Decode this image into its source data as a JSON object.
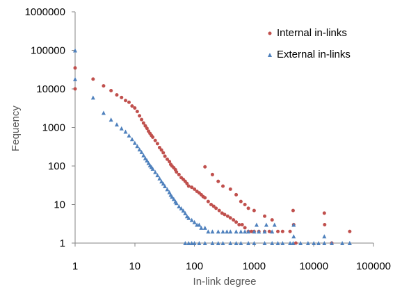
{
  "chart_data": {
    "type": "scatter",
    "title": "",
    "xlabel": "In-link degree",
    "ylabel": "Fequency",
    "xscale": "log",
    "yscale": "log",
    "xlim": [
      1,
      100000
    ],
    "ylim": [
      1,
      1000000
    ],
    "x_ticks": [
      "1",
      "10",
      "100",
      "1000",
      "10000",
      "100000"
    ],
    "y_ticks": [
      "1",
      "10",
      "100",
      "1000",
      "10000",
      "100000",
      "1000000"
    ],
    "grid": false,
    "legend_position": "top-right",
    "colors": {
      "internal": "#c0504d",
      "external": "#4f81bd",
      "axis": "#868686"
    },
    "series": [
      {
        "name": "Internal in-links",
        "marker": "circle",
        "points": [
          [
            1,
            35000
          ],
          [
            1,
            10000
          ],
          [
            2,
            18000
          ],
          [
            3,
            12000
          ],
          [
            4,
            9000
          ],
          [
            5,
            7000
          ],
          [
            6,
            6000
          ],
          [
            7,
            5000
          ],
          [
            8,
            4500
          ],
          [
            9,
            3600
          ],
          [
            10,
            3200
          ],
          [
            11,
            2600
          ],
          [
            12,
            2000
          ],
          [
            13,
            1600
          ],
          [
            14,
            1300
          ],
          [
            15,
            1100
          ],
          [
            16,
            950
          ],
          [
            17,
            800
          ],
          [
            18,
            700
          ],
          [
            19,
            620
          ],
          [
            20,
            560
          ],
          [
            22,
            460
          ],
          [
            24,
            380
          ],
          [
            26,
            300
          ],
          [
            28,
            260
          ],
          [
            30,
            220
          ],
          [
            32,
            180
          ],
          [
            35,
            150
          ],
          [
            38,
            130
          ],
          [
            40,
            110
          ],
          [
            42,
            100
          ],
          [
            45,
            90
          ],
          [
            48,
            80
          ],
          [
            50,
            70
          ],
          [
            55,
            60
          ],
          [
            60,
            50
          ],
          [
            65,
            45
          ],
          [
            70,
            40
          ],
          [
            75,
            35
          ],
          [
            80,
            30
          ],
          [
            90,
            28
          ],
          [
            100,
            25
          ],
          [
            110,
            22
          ],
          [
            120,
            20
          ],
          [
            130,
            18
          ],
          [
            140,
            16
          ],
          [
            150,
            15
          ],
          [
            170,
            12
          ],
          [
            190,
            10
          ],
          [
            210,
            9
          ],
          [
            230,
            8
          ],
          [
            260,
            7
          ],
          [
            290,
            6
          ],
          [
            320,
            5.5
          ],
          [
            360,
            5
          ],
          [
            400,
            4.5
          ],
          [
            450,
            4
          ],
          [
            500,
            3.5
          ],
          [
            560,
            3
          ],
          [
            630,
            3
          ],
          [
            700,
            2.5
          ],
          [
            800,
            2
          ],
          [
            900,
            2
          ],
          [
            1000,
            2
          ],
          [
            1200,
            2
          ],
          [
            1500,
            2
          ],
          [
            1800,
            2
          ],
          [
            2500,
            2
          ],
          [
            3000,
            2
          ],
          [
            4000,
            2
          ],
          [
            5000,
            1
          ],
          [
            150,
            95
          ],
          [
            200,
            60
          ],
          [
            250,
            40
          ],
          [
            300,
            30
          ],
          [
            400,
            25
          ],
          [
            500,
            18
          ],
          [
            600,
            12
          ],
          [
            700,
            10
          ],
          [
            800,
            8
          ],
          [
            1000,
            7
          ],
          [
            1500,
            5
          ],
          [
            2000,
            4
          ],
          [
            4500,
            7
          ],
          [
            4600,
            3
          ],
          [
            15000,
            6
          ],
          [
            15200,
            3
          ],
          [
            20000,
            1
          ],
          [
            40000,
            2
          ]
        ]
      },
      {
        "name": "External in-links",
        "marker": "triangle",
        "points": [
          [
            1,
            100000
          ],
          [
            1,
            18000
          ],
          [
            2,
            6000
          ],
          [
            3,
            2400
          ],
          [
            4,
            1600
          ],
          [
            5,
            1200
          ],
          [
            6,
            950
          ],
          [
            7,
            780
          ],
          [
            8,
            620
          ],
          [
            9,
            500
          ],
          [
            10,
            400
          ],
          [
            11,
            330
          ],
          [
            12,
            270
          ],
          [
            13,
            230
          ],
          [
            14,
            190
          ],
          [
            15,
            160
          ],
          [
            16,
            140
          ],
          [
            17,
            120
          ],
          [
            18,
            105
          ],
          [
            19,
            95
          ],
          [
            20,
            85
          ],
          [
            22,
            70
          ],
          [
            24,
            58
          ],
          [
            26,
            48
          ],
          [
            28,
            40
          ],
          [
            30,
            35
          ],
          [
            32,
            30
          ],
          [
            35,
            25
          ],
          [
            38,
            21
          ],
          [
            40,
            18
          ],
          [
            42,
            16
          ],
          [
            45,
            14
          ],
          [
            48,
            12
          ],
          [
            50,
            11
          ],
          [
            55,
            9
          ],
          [
            60,
            8
          ],
          [
            65,
            7
          ],
          [
            70,
            6
          ],
          [
            75,
            5
          ],
          [
            80,
            4.5
          ],
          [
            90,
            4
          ],
          [
            100,
            3.5
          ],
          [
            110,
            3
          ],
          [
            120,
            3
          ],
          [
            130,
            2.5
          ],
          [
            150,
            2.5
          ],
          [
            170,
            2
          ],
          [
            200,
            2
          ],
          [
            250,
            2
          ],
          [
            300,
            2
          ],
          [
            350,
            2
          ],
          [
            400,
            2
          ],
          [
            500,
            2
          ],
          [
            600,
            2
          ],
          [
            700,
            2
          ],
          [
            800,
            2
          ],
          [
            1000,
            2
          ],
          [
            1200,
            2
          ],
          [
            1500,
            2
          ],
          [
            2000,
            2
          ],
          [
            2500,
            1
          ],
          [
            3000,
            1
          ],
          [
            4000,
            1
          ],
          [
            4500,
            1
          ],
          [
            6000,
            1
          ],
          [
            8000,
            1
          ],
          [
            10000,
            1
          ],
          [
            12000,
            1
          ],
          [
            15000,
            1
          ],
          [
            20000,
            1
          ],
          [
            30000,
            1
          ],
          [
            40000,
            1
          ],
          [
            70,
            1
          ],
          [
            80,
            1
          ],
          [
            90,
            1
          ],
          [
            100,
            1
          ],
          [
            120,
            1
          ],
          [
            150,
            1
          ],
          [
            200,
            1
          ],
          [
            250,
            1
          ],
          [
            300,
            1
          ],
          [
            400,
            1
          ],
          [
            500,
            1
          ],
          [
            600,
            1
          ],
          [
            800,
            1
          ],
          [
            1000,
            1
          ],
          [
            1500,
            1
          ],
          [
            2000,
            1
          ],
          [
            1100,
            3
          ],
          [
            1600,
            3
          ],
          [
            2200,
            3
          ],
          [
            4600,
            3
          ],
          [
            4600,
            1.5
          ],
          [
            15000,
            1.5
          ],
          [
            40000,
            1
          ]
        ]
      }
    ]
  }
}
